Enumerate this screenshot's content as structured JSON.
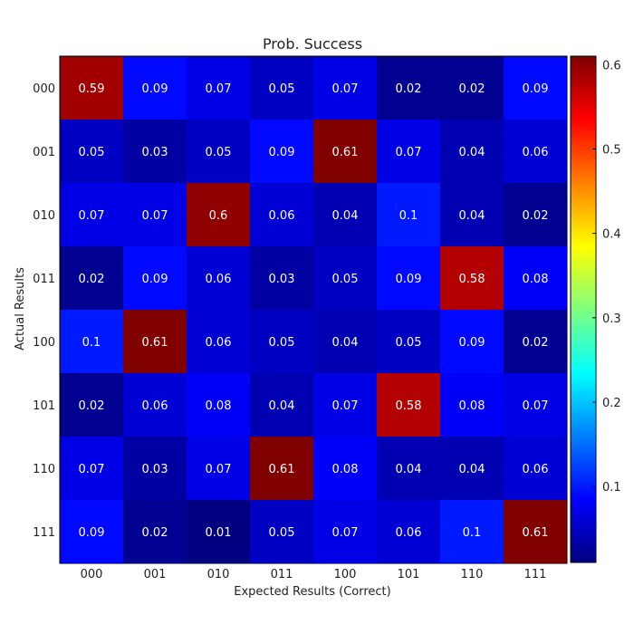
{
  "chart_data": {
    "type": "heatmap",
    "title": "Prob. Success",
    "xlabel": "Expected Results (Correct)",
    "ylabel": "Actual Results",
    "x_categories": [
      "000",
      "001",
      "010",
      "011",
      "100",
      "101",
      "110",
      "111"
    ],
    "y_categories": [
      "000",
      "001",
      "010",
      "011",
      "100",
      "101",
      "110",
      "111"
    ],
    "values": [
      [
        "0.59",
        "0.09",
        "0.07",
        "0.05",
        "0.07",
        "0.02",
        "0.02",
        "0.09"
      ],
      [
        "0.05",
        "0.03",
        "0.05",
        "0.09",
        "0.61",
        "0.07",
        "0.04",
        "0.06"
      ],
      [
        "0.07",
        "0.07",
        "0.6",
        "0.06",
        "0.04",
        "0.1",
        "0.04",
        "0.02"
      ],
      [
        "0.02",
        "0.09",
        "0.06",
        "0.03",
        "0.05",
        "0.09",
        "0.58",
        "0.08"
      ],
      [
        "0.1",
        "0.61",
        "0.06",
        "0.05",
        "0.04",
        "0.05",
        "0.09",
        "0.02"
      ],
      [
        "0.02",
        "0.06",
        "0.08",
        "0.04",
        "0.07",
        "0.58",
        "0.08",
        "0.07"
      ],
      [
        "0.07",
        "0.03",
        "0.07",
        "0.61",
        "0.08",
        "0.04",
        "0.04",
        "0.06"
      ],
      [
        "0.09",
        "0.02",
        "0.01",
        "0.05",
        "0.07",
        "0.06",
        "0.1",
        "0.61"
      ]
    ],
    "colormap": "jet",
    "vmin": 0.01,
    "vmax": 0.61,
    "colorbar_ticks": [
      "0.1",
      "0.2",
      "0.3",
      "0.4",
      "0.5",
      "0.6"
    ],
    "grid": false
  }
}
